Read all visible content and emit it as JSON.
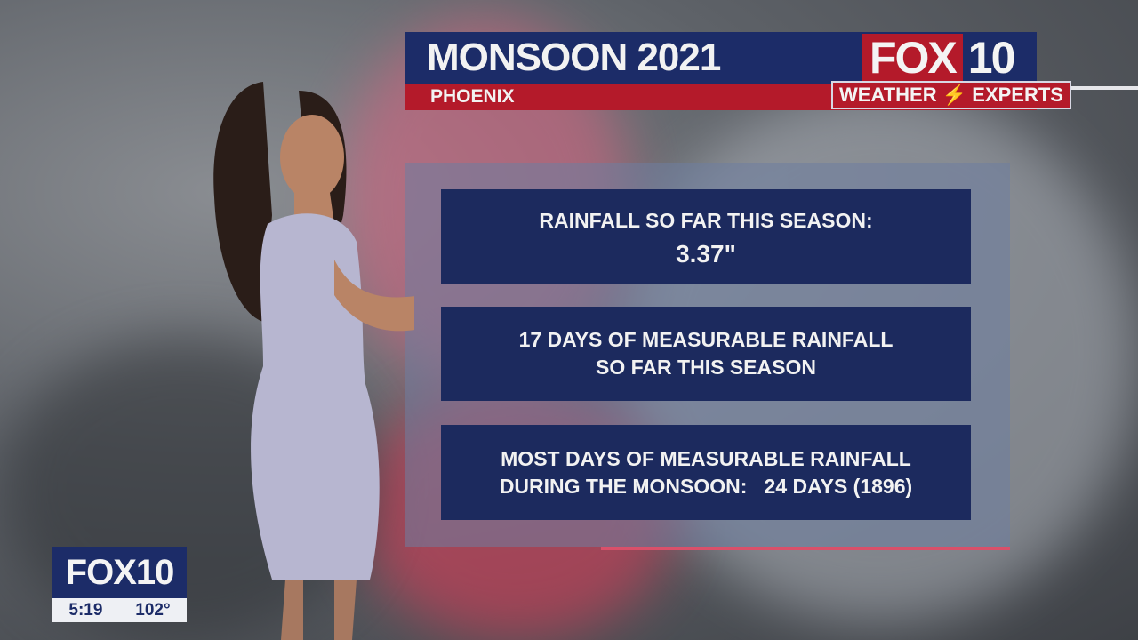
{
  "header": {
    "title": "MONSOON 2021",
    "subtitle": "PHOENIX"
  },
  "logo": {
    "fox": "FOX",
    "number": "10",
    "tagline_left": "WEATHER",
    "tagline_right": "EXPERTS"
  },
  "cards": [
    {
      "line1": "RAINFALL SO FAR THIS SEASON:",
      "line2": "3.37\""
    },
    {
      "line1": "17 DAYS OF MEASURABLE RAINFALL",
      "line2": "SO FAR THIS SEASON"
    },
    {
      "line1": "MOST DAYS OF MEASURABLE RAINFALL",
      "line2": "DURING THE MONSOON:   24 DAYS (1896)"
    }
  ],
  "bug": {
    "brand": "FOX10",
    "time": "5:19",
    "temperature": "102°"
  },
  "colors": {
    "navy": "#1c2c68",
    "red": "#b41a2a"
  }
}
